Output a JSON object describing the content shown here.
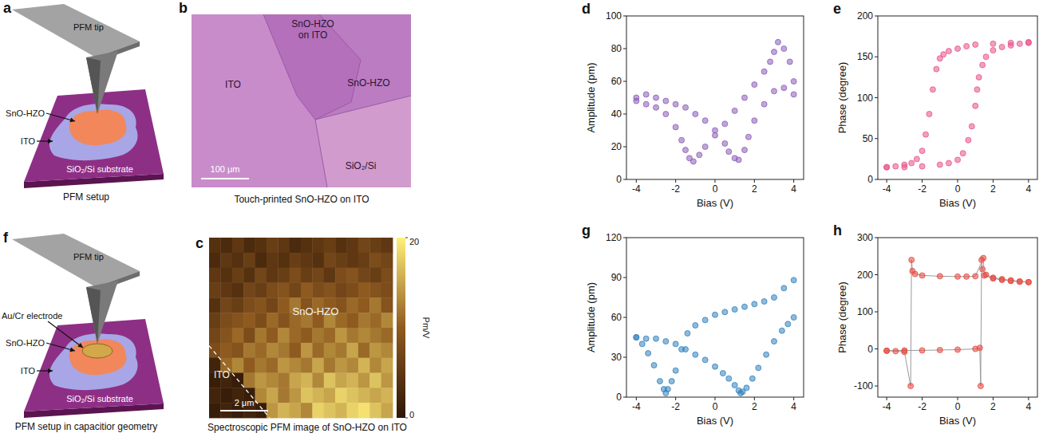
{
  "schematics": [
    {
      "panel": "a",
      "title": "PFM setup",
      "labels": {
        "tip": "PFM tip",
        "film": "SnO-HZO",
        "ito": "ITO",
        "substrate": "SiO₂/Si substrate"
      }
    },
    {
      "panel": "f",
      "title": "PFM setup in capacitior geometry",
      "labels": {
        "tip": "PFM tip",
        "electrode": "Au/Cr electrode",
        "film": "SnO-HZO",
        "ito": "ITO",
        "substrate": "SiO₂/Si substrate"
      }
    }
  ],
  "micrograph": {
    "panel": "b",
    "title": "Touch-printed SnO-HZO on ITO",
    "labels": {
      "top": "SnO-HZO on ITO",
      "left": "ITO",
      "right": "SnO-HZO",
      "bottom": "SiO₂/Si"
    },
    "scale_bar": "100 μm"
  },
  "chart_data": [
    {
      "type": "heatmap",
      "panel": "c",
      "title": "Spectroscopic PFM image of SnO-HZO on ITO",
      "tick_labels": false,
      "region_labels": {
        "film": "SnO-HZO",
        "ito": "ITO"
      },
      "scale_bar": "2 μm",
      "color_range": [
        0,
        20
      ],
      "color_ticks": [
        0,
        20
      ],
      "color_label": "Pm/V",
      "cells": [
        [
          4,
          3,
          5,
          3,
          4,
          6,
          5,
          3,
          4,
          5,
          6,
          4,
          5,
          7,
          6,
          5
        ],
        [
          3,
          5,
          4,
          6,
          3,
          5,
          4,
          6,
          5,
          4,
          7,
          6,
          5,
          6,
          8,
          7
        ],
        [
          5,
          4,
          6,
          4,
          7,
          5,
          6,
          8,
          6,
          7,
          5,
          8,
          9,
          7,
          6,
          8
        ],
        [
          6,
          5,
          4,
          7,
          6,
          8,
          9,
          7,
          10,
          8,
          9,
          7,
          8,
          10,
          9,
          8
        ],
        [
          4,
          7,
          6,
          8,
          9,
          7,
          10,
          12,
          9,
          11,
          10,
          9,
          11,
          10,
          12,
          9
        ],
        [
          6,
          8,
          9,
          10,
          8,
          11,
          9,
          11,
          12,
          10,
          13,
          11,
          10,
          12,
          11,
          13
        ],
        [
          7,
          9,
          11,
          8,
          12,
          10,
          13,
          11,
          10,
          12,
          11,
          14,
          12,
          13,
          12,
          11
        ],
        [
          8,
          10,
          9,
          12,
          11,
          13,
          12,
          10,
          14,
          11,
          13,
          12,
          15,
          11,
          14,
          13
        ],
        [
          2,
          11,
          13,
          10,
          12,
          11,
          14,
          13,
          12,
          15,
          12,
          14,
          13,
          16,
          13,
          15
        ],
        [
          1,
          2,
          1,
          12,
          14,
          13,
          12,
          15,
          16,
          13,
          17,
          15,
          16,
          14,
          17,
          14
        ],
        [
          2,
          1,
          2,
          1,
          13,
          15,
          12,
          14,
          17,
          16,
          15,
          18,
          17,
          16,
          15,
          16
        ],
        [
          1,
          2,
          1,
          2,
          1,
          14,
          16,
          15,
          13,
          18,
          17,
          16,
          18,
          19,
          17,
          15
        ]
      ]
    },
    {
      "type": "scatter",
      "panel": "d",
      "xlabel": "Bias (V)",
      "ylabel": "Amplitude (pm)",
      "xlim": [
        -4.5,
        4.5
      ],
      "xticks": [
        -4,
        -2,
        0,
        2,
        4
      ],
      "ylim": [
        0,
        100
      ],
      "yticks": [
        0,
        20,
        40,
        60,
        80,
        100
      ],
      "series": [
        {
          "color": "#8a5cb8",
          "marker": "circle",
          "x": [
            -4,
            -3.5,
            -3,
            -2.5,
            -2,
            -1.7,
            -1.5,
            -1.3,
            -1.1,
            -0.8,
            -0.5,
            0,
            0.5,
            1,
            1.5,
            2,
            2.5,
            2.8,
            3,
            3.2,
            3.5,
            3.8,
            4
          ],
          "values": [
            50,
            46,
            44,
            40,
            32,
            24,
            18,
            13,
            11,
            15,
            20,
            27,
            34,
            42,
            50,
            58,
            66,
            72,
            78,
            84,
            80,
            72,
            60
          ]
        },
        {
          "color": "#8a5cb8",
          "marker": "circle",
          "x": [
            4,
            3.5,
            3,
            2.5,
            2,
            1.7,
            1.5,
            1.2,
            1,
            0.7,
            0.5,
            0,
            -0.5,
            -1,
            -1.5,
            -2,
            -2.5,
            -3,
            -3.5,
            -4
          ],
          "values": [
            52,
            56,
            54,
            46,
            36,
            26,
            18,
            12,
            13,
            17,
            22,
            30,
            36,
            40,
            44,
            46,
            48,
            50,
            52,
            48
          ]
        }
      ]
    },
    {
      "type": "scatter",
      "panel": "e",
      "xlabel": "Bias (V)",
      "ylabel": "Phase (degree)",
      "xlim": [
        -4.5,
        4.5
      ],
      "xticks": [
        -4,
        -2,
        0,
        2,
        4
      ],
      "ylim": [
        0,
        200
      ],
      "yticks": [
        0,
        50,
        100,
        150,
        200
      ],
      "series": [
        {
          "color": "#e8508a",
          "marker": "circle",
          "x": [
            -4,
            -3,
            -2,
            -1,
            -0.5,
            0,
            0.3,
            0.6,
            0.8,
            1,
            1.1,
            1.2,
            1.4,
            1.6,
            2,
            2.5,
            3,
            3.5,
            4
          ],
          "values": [
            15,
            15,
            16,
            18,
            20,
            24,
            32,
            48,
            65,
            90,
            110,
            125,
            140,
            150,
            158,
            162,
            164,
            166,
            167
          ]
        },
        {
          "color": "#e8508a",
          "marker": "circle",
          "x": [
            4,
            3,
            2,
            1,
            0.5,
            0,
            -0.5,
            -0.8,
            -1,
            -1.2,
            -1.4,
            -1.6,
            -1.8,
            -2,
            -2.3,
            -2.6,
            -3,
            -3.5,
            -4
          ],
          "values": [
            168,
            167,
            166,
            165,
            163,
            160,
            157,
            153,
            148,
            135,
            110,
            80,
            55,
            35,
            25,
            20,
            18,
            16,
            15
          ]
        }
      ]
    },
    {
      "type": "scatter",
      "panel": "g",
      "xlabel": "Bias (V)",
      "ylabel": "Amplitude (pm)",
      "xlim": [
        -4.5,
        4.5
      ],
      "xticks": [
        -4,
        -2,
        0,
        2,
        4
      ],
      "ylim": [
        0,
        120
      ],
      "yticks": [
        0,
        30,
        60,
        90,
        120
      ],
      "series": [
        {
          "color": "#3182bd",
          "marker": "circle",
          "x": [
            -4,
            -3.7,
            -3.4,
            -3.1,
            -2.8,
            -2.6,
            -2.5,
            -2.4,
            -2.2,
            -2,
            -1.7,
            -1.4,
            -1,
            -0.5,
            0,
            0.5,
            1,
            1.5,
            2,
            2.5,
            3,
            3.5,
            4
          ],
          "values": [
            45,
            40,
            33,
            24,
            12,
            6,
            3,
            6,
            12,
            20,
            36,
            48,
            54,
            58,
            62,
            64,
            66,
            68,
            70,
            72,
            75,
            82,
            88
          ]
        },
        {
          "color": "#3182bd",
          "marker": "circle",
          "x": [
            4,
            3.7,
            3.4,
            3,
            2.6,
            2.2,
            1.9,
            1.6,
            1.4,
            1.3,
            1.2,
            1,
            0.7,
            0.4,
            0,
            -0.5,
            -1,
            -1.5,
            -2,
            -2.5,
            -3,
            -3.5,
            -4
          ],
          "values": [
            60,
            55,
            50,
            42,
            32,
            22,
            14,
            7,
            4,
            3,
            5,
            9,
            14,
            18,
            23,
            28,
            32,
            36,
            40,
            42,
            44,
            44,
            45
          ]
        }
      ]
    },
    {
      "type": "scatter",
      "panel": "h",
      "xlabel": "Bias (V)",
      "ylabel": "Phase (degree)",
      "xlim": [
        -4.5,
        4.5
      ],
      "xticks": [
        -4,
        -2,
        0,
        2,
        4
      ],
      "ylim": [
        -130,
        300
      ],
      "yticks": [
        -100,
        0,
        100,
        200,
        300
      ],
      "series": [
        {
          "color": "#e8463c",
          "marker": "circle",
          "line_style": "solid",
          "x": [
            -4,
            -3,
            -2,
            -1,
            0,
            1,
            1.25,
            1.3,
            1.35,
            1.4,
            1.6,
            2,
            2.5,
            3,
            3.5,
            4
          ],
          "values": [
            -5,
            -4,
            -4,
            -3,
            -2,
            0,
            3,
            -100,
            240,
            215,
            200,
            192,
            188,
            185,
            182,
            180
          ]
        },
        {
          "color": "#e8463c",
          "marker": "circle",
          "line_style": "solid",
          "x": [
            4,
            3.5,
            3,
            2.5,
            2,
            1.5,
            1.45,
            1,
            0.5,
            0,
            -1,
            -2,
            -2.4,
            -2.55,
            -2.6,
            -2.65,
            -3,
            -3.5,
            -4
          ],
          "values": [
            180,
            181,
            183,
            186,
            190,
            198,
            245,
            196,
            195,
            195,
            196,
            198,
            202,
            210,
            240,
            -100,
            -8,
            -6,
            -5
          ]
        }
      ]
    }
  ]
}
